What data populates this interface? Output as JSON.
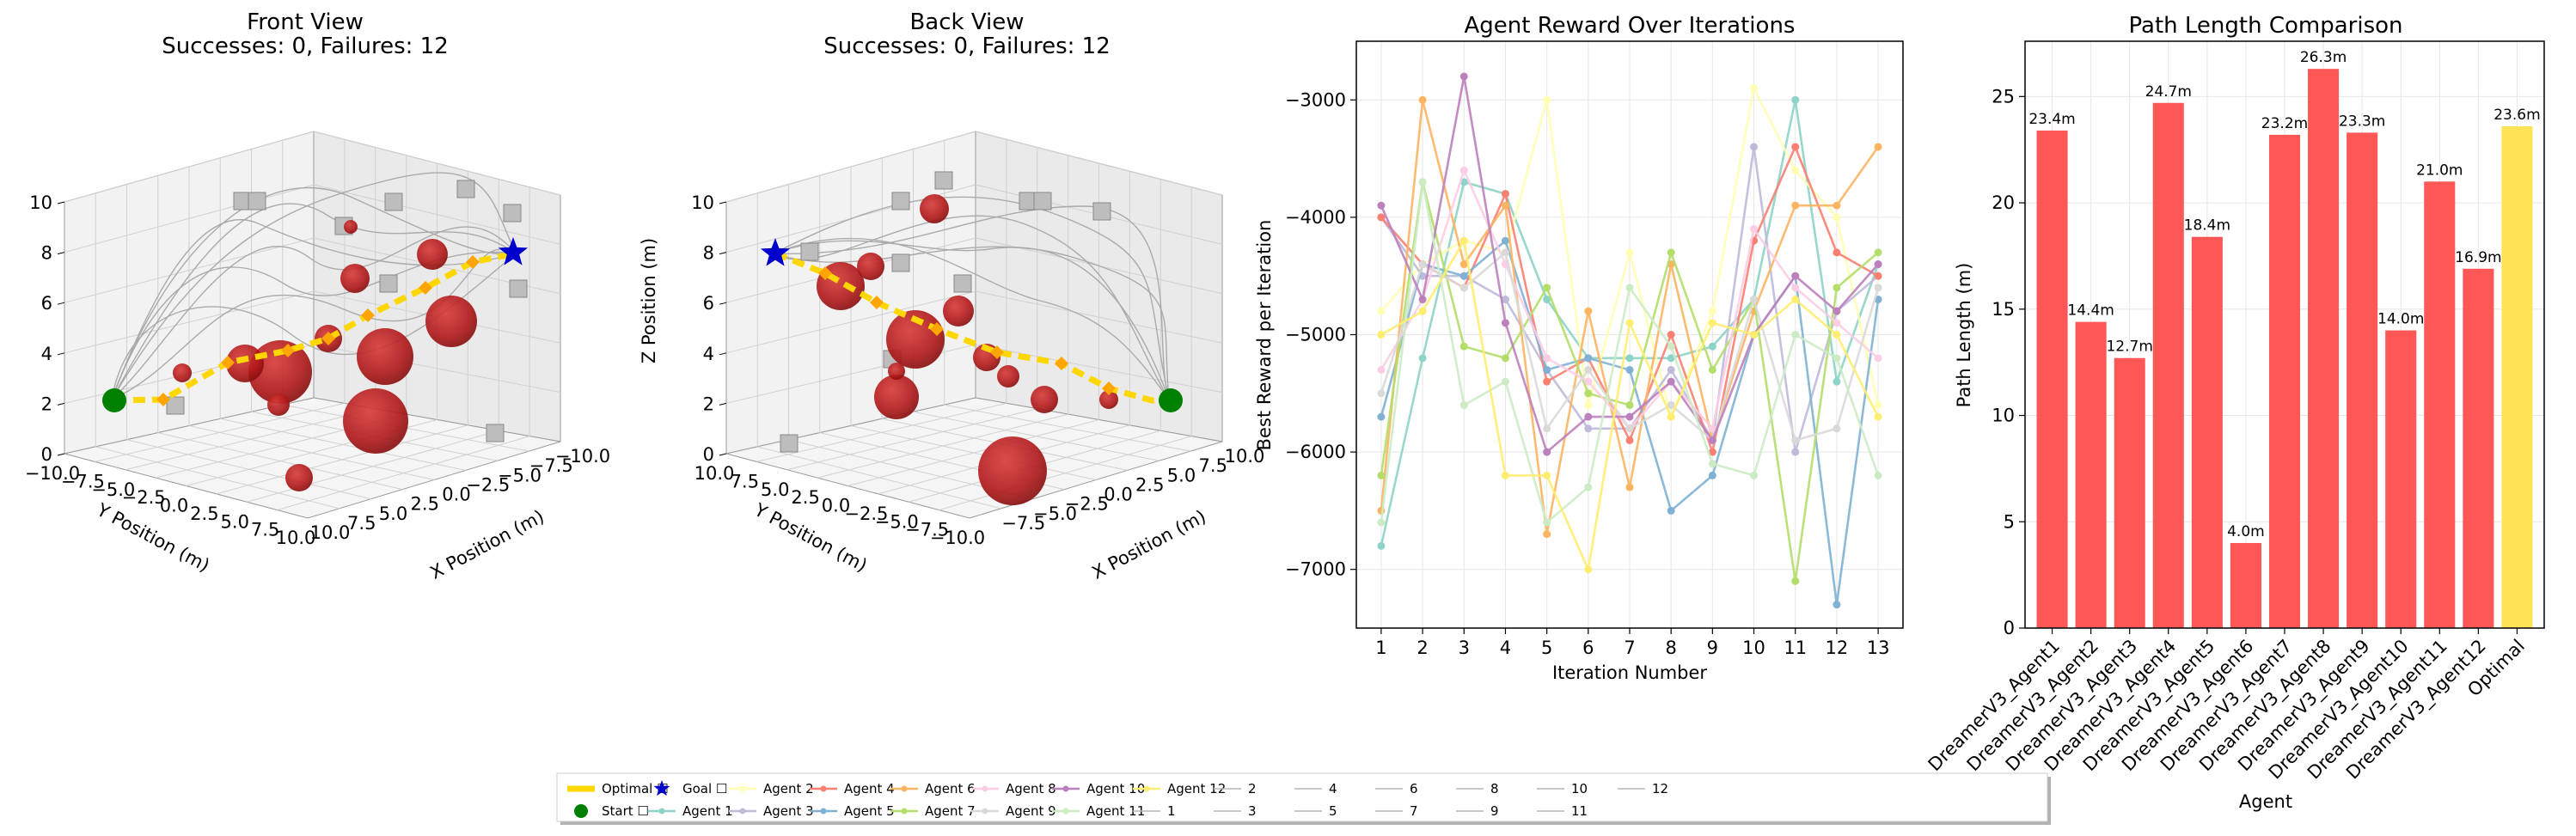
{
  "chart_data": [
    {
      "type": "scatter3d",
      "title": "Front View",
      "subtitle": "Successes: 0, Failures: 12",
      "xlabel": "X Position (m)",
      "ylabel": "Y Position (m)",
      "zlabel": "",
      "xlim": [
        -10,
        10
      ],
      "ylim": [
        -10,
        10
      ],
      "zlim": [
        0,
        10
      ],
      "x_ticks": [
        "10.0",
        "7.5",
        "5.0",
        "2.5",
        "0.0",
        "−2.5",
        "−5.0",
        "−7.5",
        "−10.0"
      ],
      "y_ticks": [
        "−10.0",
        "−7.5",
        "−5.0",
        "−2.5",
        "0.0",
        "2.5",
        "5.0",
        "7.5",
        "10.0"
      ],
      "z_ticks": [
        "0",
        "2",
        "4",
        "6",
        "8",
        "10"
      ],
      "start": [
        -9,
        0,
        2
      ],
      "goal": [
        9,
        0,
        8
      ]
    },
    {
      "type": "scatter3d",
      "title": "Back View",
      "subtitle": "Successes: 0, Failures: 12",
      "xlabel": "X Position (m)",
      "ylabel": "Y Position (m)",
      "zlabel": "Z Position (m)",
      "xlim": [
        -10,
        10
      ],
      "ylim": [
        -10,
        10
      ],
      "zlim": [
        0,
        10
      ],
      "x_ticks": [
        "−7.5",
        "−5.0",
        "−2.5",
        "0.0",
        "2.5",
        "5.0",
        "7.5",
        "10.0"
      ],
      "y_ticks": [
        "10.0",
        "7.5",
        "5.0",
        "2.5",
        "0.0",
        "−2.5",
        "−5.0",
        "−7.5",
        "−10.0"
      ],
      "z_ticks": [
        "0",
        "2",
        "4",
        "6",
        "8",
        "10"
      ]
    },
    {
      "type": "line",
      "title": "Agent Reward Over Iterations",
      "xlabel": "Iteration Number",
      "ylabel": "Best Reward per Iteration",
      "x": [
        1,
        2,
        3,
        4,
        5,
        6,
        7,
        8,
        9,
        10,
        11,
        12,
        13
      ],
      "ylim": [
        -7500,
        -2500
      ],
      "y_ticks": [
        -3000,
        -4000,
        -5000,
        -6000,
        -7000
      ],
      "y_tick_labels": [
        "−3000",
        "−4000",
        "−5000",
        "−6000",
        "−7000"
      ],
      "grid": true,
      "series": [
        {
          "name": "Agent 1",
          "color": "#8dd3c7",
          "values": [
            -6800,
            -5200,
            -3700,
            -3800,
            -4700,
            -5200,
            -5200,
            -5200,
            -5100,
            -4700,
            -3000,
            -5400,
            -4400
          ]
        },
        {
          "name": "Agent 2",
          "color": "#ffffb3",
          "values": [
            -4800,
            -4400,
            -4200,
            -4300,
            -3000,
            -5600,
            -4300,
            -5700,
            -4800,
            -2900,
            -3600,
            -4000,
            -5600
          ]
        },
        {
          "name": "Agent 3",
          "color": "#bebada",
          "values": [
            -4000,
            -4500,
            -4500,
            -4700,
            -5300,
            -5800,
            -5800,
            -5300,
            -5900,
            -3400,
            -6000,
            -4800,
            -4500
          ]
        },
        {
          "name": "Agent 4",
          "color": "#fb8072",
          "values": [
            -4000,
            -4400,
            -4600,
            -3800,
            -5400,
            -5200,
            -5900,
            -5000,
            -6000,
            -4200,
            -3400,
            -4300,
            -4500
          ]
        },
        {
          "name": "Agent 5",
          "color": "#80b1d3",
          "values": [
            -5700,
            -4400,
            -4500,
            -4200,
            -5300,
            -5200,
            -5300,
            -6500,
            -6200,
            -5000,
            -4500,
            -7300,
            -4700
          ]
        },
        {
          "name": "Agent 6",
          "color": "#fdb462",
          "values": [
            -6500,
            -3000,
            -4400,
            -3900,
            -6700,
            -4800,
            -6300,
            -4400,
            -5900,
            -4800,
            -3900,
            -3900,
            -3400
          ]
        },
        {
          "name": "Agent 7",
          "color": "#b3de69",
          "values": [
            -6200,
            -3700,
            -5100,
            -5200,
            -4600,
            -5500,
            -5600,
            -4300,
            -5300,
            -4700,
            -7100,
            -4600,
            -4300
          ]
        },
        {
          "name": "Agent 8",
          "color": "#fccde5",
          "values": [
            -5300,
            -4700,
            -3600,
            -4400,
            -5200,
            -5400,
            -5800,
            -5400,
            -5800,
            -4100,
            -4600,
            -4900,
            -5200
          ]
        },
        {
          "name": "Agent 9",
          "color": "#d9d9d9",
          "values": [
            -5500,
            -4400,
            -4600,
            -4300,
            -5800,
            -5300,
            -5800,
            -5600,
            -5900,
            -4700,
            -5900,
            -5800,
            -4600
          ]
        },
        {
          "name": "Agent 10",
          "color": "#bc80bd",
          "values": [
            -3900,
            -4700,
            -2800,
            -4900,
            -6000,
            -5700,
            -5700,
            -5400,
            -5900,
            -5000,
            -4500,
            -4800,
            -4400
          ]
        },
        {
          "name": "Agent 11",
          "color": "#ccebc5",
          "values": [
            -6600,
            -3700,
            -5600,
            -5400,
            -6600,
            -6300,
            -4600,
            -5100,
            -6100,
            -6200,
            -5000,
            -5200,
            -6200
          ]
        },
        {
          "name": "Agent 12",
          "color": "#ffed6f",
          "values": [
            -5000,
            -4800,
            -4200,
            -6200,
            -6200,
            -7000,
            -4900,
            -5700,
            -4900,
            -5000,
            -4700,
            -5000,
            -5700
          ]
        }
      ]
    },
    {
      "type": "bar",
      "title": "Path Length Comparison",
      "xlabel": "Agent",
      "ylabel": "Path Length (m)",
      "ylim": [
        0,
        27.6
      ],
      "y_ticks": [
        0,
        5,
        10,
        15,
        20,
        25
      ],
      "grid": true,
      "categories": [
        "DreamerV3_Agent1",
        "DreamerV3_Agent2",
        "DreamerV3_Agent3",
        "DreamerV3_Agent4",
        "DreamerV3_Agent5",
        "DreamerV3_Agent6",
        "DreamerV3_Agent7",
        "DreamerV3_Agent8",
        "DreamerV3_Agent9",
        "DreamerV3_Agent10",
        "DreamerV3_Agent11",
        "DreamerV3_Agent12",
        "Optimal"
      ],
      "values": [
        23.4,
        14.4,
        12.7,
        24.7,
        18.4,
        4.0,
        23.2,
        26.3,
        23.3,
        14.0,
        21.0,
        16.9,
        23.6
      ],
      "value_labels": [
        "23.4m",
        "14.4m",
        "12.7m",
        "24.7m",
        "18.4m",
        "4.0m",
        "23.2m",
        "26.3m",
        "23.3m",
        "14.0m",
        "21.0m",
        "16.9m",
        "23.6m"
      ],
      "colors": {
        "agent": "#ff4d4d",
        "optimal": "#ffe04d"
      }
    }
  ],
  "legend": {
    "placement": "bottom-center",
    "items": [
      {
        "label": "Optimal ☐",
        "kind": "thick-line",
        "color": "#ffd700"
      },
      {
        "label": "Start ☐",
        "kind": "circle",
        "color": "#008000"
      },
      {
        "label": "Goal ☐",
        "kind": "star",
        "color": "#0000cc"
      },
      {
        "label": "Agent 1",
        "kind": "line",
        "color": "#8dd3c7"
      },
      {
        "label": "Agent 2",
        "kind": "line",
        "color": "#ffffb3"
      },
      {
        "label": "Agent 3",
        "kind": "line",
        "color": "#bebada"
      },
      {
        "label": "Agent 4",
        "kind": "line",
        "color": "#fb8072"
      },
      {
        "label": "Agent 5",
        "kind": "line",
        "color": "#80b1d3"
      },
      {
        "label": "Agent 6",
        "kind": "line",
        "color": "#fdb462"
      },
      {
        "label": "Agent 7",
        "kind": "line",
        "color": "#b3de69"
      },
      {
        "label": "Agent 8",
        "kind": "line",
        "color": "#fccde5"
      },
      {
        "label": "Agent 9",
        "kind": "line",
        "color": "#d9d9d9"
      },
      {
        "label": "Agent 10",
        "kind": "line",
        "color": "#bc80bd"
      },
      {
        "label": "Agent 11",
        "kind": "line",
        "color": "#ccebc5"
      },
      {
        "label": "Agent 12",
        "kind": "line",
        "color": "#ffed6f"
      },
      {
        "label": "1",
        "kind": "gray"
      },
      {
        "label": "2",
        "kind": "gray"
      },
      {
        "label": "3",
        "kind": "gray"
      },
      {
        "label": "4",
        "kind": "gray"
      },
      {
        "label": "5",
        "kind": "gray"
      },
      {
        "label": "6",
        "kind": "gray"
      },
      {
        "label": "7",
        "kind": "gray"
      },
      {
        "label": "8",
        "kind": "gray"
      },
      {
        "label": "9",
        "kind": "gray"
      },
      {
        "label": "10",
        "kind": "gray"
      },
      {
        "label": "11",
        "kind": "gray"
      },
      {
        "label": "12",
        "kind": "gray"
      }
    ]
  }
}
